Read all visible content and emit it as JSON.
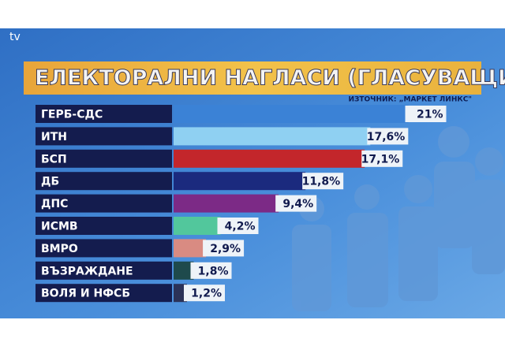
{
  "logo": "tv",
  "chart_data": {
    "type": "hbar",
    "title": "ЕЛЕКТОРАЛНИ НАГЛАСИ (ГЛАСУВАЩИ)",
    "source": "ИЗТОЧНИК: „МАРКЕТ ЛИНКС\"",
    "categories": [
      "ГЕРБ-СДС",
      "ИТН",
      "БСП",
      "ДБ",
      "ДПС",
      "ИСМВ",
      "ВМРО",
      "ВЪЗРАЖДАНЕ",
      "ВОЛЯ И НФСБ"
    ],
    "values": [
      21,
      17.6,
      17.1,
      11.8,
      9.4,
      4.2,
      2.9,
      1.8,
      1.2
    ],
    "value_labels": [
      "21%",
      "17,6%",
      "17,1%",
      "11,8%",
      "9,4%",
      "4,2%",
      "2,9%",
      "1,8%",
      "1,2%"
    ],
    "colors": [
      "#3b82d6",
      "#8fd0f2",
      "#c3262b",
      "#1b2a7e",
      "#7c2a86",
      "#52c79c",
      "#d98b82",
      "#1e4a4c",
      "#2b3258"
    ],
    "xlim": [
      0,
      24
    ]
  }
}
